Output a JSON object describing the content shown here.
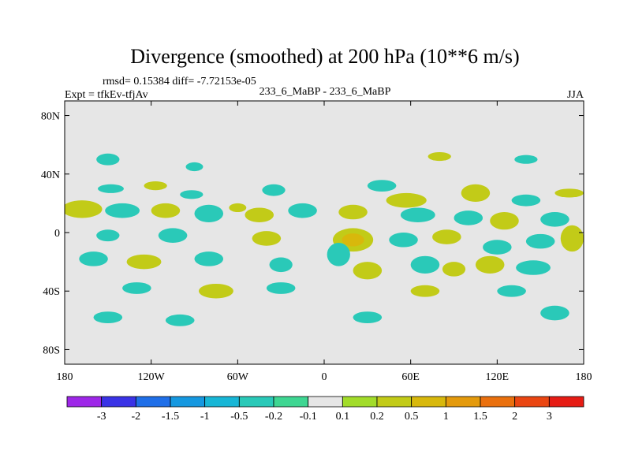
{
  "chart_data": {
    "type": "heatmap",
    "title": "Divergence (smoothed) at 200 hPa (10**6 m/s)",
    "stats_line": "rmsd= 0.15384 diff= -7.72153e-05",
    "left_label": "Expt = tfkEv-tfjAv",
    "center_label": "233_6_MaBP - 233_6_MaBP",
    "season": "JJA",
    "xlabel": "",
    "ylabel": "",
    "xlim": [
      -180,
      180
    ],
    "ylim": [
      -90,
      90
    ],
    "x_ticks": [
      {
        "value": -180,
        "label": "180"
      },
      {
        "value": -120,
        "label": "120W"
      },
      {
        "value": -60,
        "label": "60W"
      },
      {
        "value": 0,
        "label": "0"
      },
      {
        "value": 60,
        "label": "60E"
      },
      {
        "value": 120,
        "label": "120E"
      },
      {
        "value": 180,
        "label": "180"
      }
    ],
    "y_ticks": [
      {
        "value": 80,
        "label": "80N"
      },
      {
        "value": 40,
        "label": "40N"
      },
      {
        "value": 0,
        "label": "0"
      },
      {
        "value": -40,
        "label": "40S"
      },
      {
        "value": -80,
        "label": "80S"
      }
    ],
    "background_color": "#e6e6e6",
    "colorbar": {
      "labels": [
        "-3",
        "-2",
        "-1.5",
        "-1",
        "-0.5",
        "-0.2",
        "-0.1",
        "0.1",
        "0.2",
        "0.5",
        "1",
        "1.5",
        "2",
        "3"
      ],
      "colors": [
        "#9e27e8",
        "#3a33e6",
        "#1f6fe8",
        "#1598e0",
        "#17b6d6",
        "#2ac9b8",
        "#3ed692",
        "#e6e6e6",
        "#a2dc2a",
        "#c2cb18",
        "#d8b80c",
        "#e49a0c",
        "#ea700e",
        "#ea4612",
        "#e61c14"
      ]
    },
    "anomalies": [
      {
        "lon": -148,
        "lat": 30,
        "rx": 9,
        "ry": 3,
        "level": -1
      },
      {
        "lon": -117,
        "lat": 32,
        "rx": 8,
        "ry": 3,
        "level": 1
      },
      {
        "lon": -60,
        "lat": 17,
        "rx": 6,
        "ry": 3,
        "level": 1
      },
      {
        "lon": -92,
        "lat": 26,
        "rx": 8,
        "ry": 3,
        "level": -1
      },
      {
        "lon": -35,
        "lat": 29,
        "rx": 8,
        "ry": 4,
        "level": -1
      },
      {
        "lon": 40,
        "lat": 32,
        "rx": 10,
        "ry": 4,
        "level": -1
      },
      {
        "lon": 57,
        "lat": 22,
        "rx": 14,
        "ry": 5,
        "level": 1
      },
      {
        "lon": 105,
        "lat": 27,
        "rx": 10,
        "ry": 6,
        "level": 1
      },
      {
        "lon": 140,
        "lat": 22,
        "rx": 10,
        "ry": 4,
        "level": -1
      },
      {
        "lon": 170,
        "lat": 27,
        "rx": 10,
        "ry": 3,
        "level": 1
      },
      {
        "lon": -168,
        "lat": 16,
        "rx": 14,
        "ry": 6,
        "level": 1
      },
      {
        "lon": -140,
        "lat": 15,
        "rx": 12,
        "ry": 5,
        "level": -1
      },
      {
        "lon": -110,
        "lat": 15,
        "rx": 10,
        "ry": 5,
        "level": 1
      },
      {
        "lon": -80,
        "lat": 13,
        "rx": 10,
        "ry": 6,
        "level": -1
      },
      {
        "lon": -45,
        "lat": 12,
        "rx": 10,
        "ry": 5,
        "level": 1
      },
      {
        "lon": -15,
        "lat": 15,
        "rx": 10,
        "ry": 5,
        "level": -1
      },
      {
        "lon": 20,
        "lat": 14,
        "rx": 10,
        "ry": 5,
        "level": 1
      },
      {
        "lon": 65,
        "lat": 12,
        "rx": 12,
        "ry": 5,
        "level": -1
      },
      {
        "lon": 100,
        "lat": 10,
        "rx": 10,
        "ry": 5,
        "level": -1
      },
      {
        "lon": 125,
        "lat": 8,
        "rx": 10,
        "ry": 6,
        "level": 1
      },
      {
        "lon": 160,
        "lat": 9,
        "rx": 10,
        "ry": 5,
        "level": -1
      },
      {
        "lon": -150,
        "lat": -2,
        "rx": 8,
        "ry": 4,
        "level": -1
      },
      {
        "lon": -105,
        "lat": -2,
        "rx": 10,
        "ry": 5,
        "level": -1
      },
      {
        "lon": -40,
        "lat": -4,
        "rx": 10,
        "ry": 5,
        "level": 1
      },
      {
        "lon": 20,
        "lat": -5,
        "rx": 14,
        "ry": 8,
        "level": 2
      },
      {
        "lon": 55,
        "lat": -5,
        "rx": 10,
        "ry": 5,
        "level": -1
      },
      {
        "lon": 85,
        "lat": -3,
        "rx": 10,
        "ry": 5,
        "level": 1
      },
      {
        "lon": 120,
        "lat": -10,
        "rx": 10,
        "ry": 5,
        "level": -1
      },
      {
        "lon": 150,
        "lat": -6,
        "rx": 10,
        "ry": 5,
        "level": -1
      },
      {
        "lon": 172,
        "lat": -4,
        "rx": 8,
        "ry": 9,
        "level": 1
      },
      {
        "lon": -160,
        "lat": -18,
        "rx": 10,
        "ry": 5,
        "level": -1
      },
      {
        "lon": -125,
        "lat": -20,
        "rx": 12,
        "ry": 5,
        "level": 1
      },
      {
        "lon": -80,
        "lat": -18,
        "rx": 10,
        "ry": 5,
        "level": -1
      },
      {
        "lon": -30,
        "lat": -22,
        "rx": 8,
        "ry": 5,
        "level": -1
      },
      {
        "lon": 10,
        "lat": -15,
        "rx": 8,
        "ry": 8,
        "level": -1
      },
      {
        "lon": 30,
        "lat": -26,
        "rx": 10,
        "ry": 6,
        "level": 1
      },
      {
        "lon": 70,
        "lat": -22,
        "rx": 10,
        "ry": 6,
        "level": -1
      },
      {
        "lon": 90,
        "lat": -25,
        "rx": 8,
        "ry": 5,
        "level": 1
      },
      {
        "lon": 115,
        "lat": -22,
        "rx": 10,
        "ry": 6,
        "level": 1
      },
      {
        "lon": 145,
        "lat": -24,
        "rx": 12,
        "ry": 5,
        "level": -1
      },
      {
        "lon": -130,
        "lat": -38,
        "rx": 10,
        "ry": 4,
        "level": -1
      },
      {
        "lon": -75,
        "lat": -40,
        "rx": 12,
        "ry": 5,
        "level": 1
      },
      {
        "lon": -30,
        "lat": -38,
        "rx": 10,
        "ry": 4,
        "level": -1
      },
      {
        "lon": 70,
        "lat": -40,
        "rx": 10,
        "ry": 4,
        "level": 1
      },
      {
        "lon": 130,
        "lat": -40,
        "rx": 10,
        "ry": 4,
        "level": -1
      },
      {
        "lon": 160,
        "lat": -55,
        "rx": 10,
        "ry": 5,
        "level": -1
      },
      {
        "lon": -150,
        "lat": -58,
        "rx": 10,
        "ry": 4,
        "level": -1
      },
      {
        "lon": -100,
        "lat": -60,
        "rx": 10,
        "ry": 4,
        "level": -1
      },
      {
        "lon": 30,
        "lat": -58,
        "rx": 10,
        "ry": 4,
        "level": -1
      },
      {
        "lon": -150,
        "lat": 50,
        "rx": 8,
        "ry": 4,
        "level": -1
      },
      {
        "lon": -90,
        "lat": 45,
        "rx": 6,
        "ry": 3,
        "level": -1
      },
      {
        "lon": 80,
        "lat": 52,
        "rx": 8,
        "ry": 3,
        "level": 1
      },
      {
        "lon": 140,
        "lat": 50,
        "rx": 8,
        "ry": 3,
        "level": -1
      }
    ]
  }
}
